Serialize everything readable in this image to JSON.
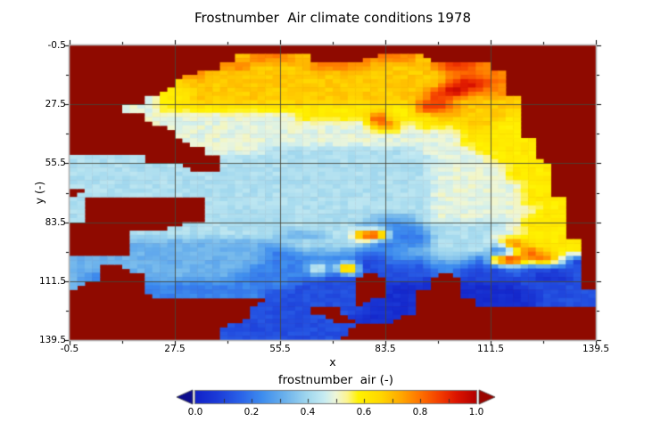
{
  "chart_data": {
    "type": "heatmap",
    "title": "Frostnumber  Air climate conditions 1978",
    "xlabel": "x",
    "ylabel": "y (-)",
    "x_range": [
      -0.5,
      139.5
    ],
    "y_range": [
      -0.5,
      139.5
    ],
    "y_axis_direction": "downward",
    "x_ticks": {
      "labels": [
        "-0.5",
        "27.5",
        "55.5",
        "83.5",
        "111.5",
        "139.5"
      ],
      "values": [
        -0.5,
        27.5,
        55.5,
        83.5,
        111.5,
        139.5
      ],
      "minor_values": [
        13.5,
        41.5,
        69.5,
        97.5,
        125.5
      ]
    },
    "y_ticks": {
      "labels": [
        "-0.5",
        "27.5",
        "55.5",
        "83.5",
        "111.5",
        "139.5"
      ],
      "values": [
        -0.5,
        27.5,
        55.5,
        83.5,
        111.5,
        139.5
      ],
      "minor_values": [
        13.5,
        41.5,
        69.5,
        97.5,
        125.5
      ]
    },
    "grid_on": true,
    "colorbar": {
      "title": "frostnumber  air (-)",
      "tick_labels": [
        "0.0",
        "0.2",
        "0.4",
        "0.6",
        "0.8",
        "1.0"
      ],
      "tick_values": [
        0,
        0.2,
        0.4,
        0.6,
        0.8,
        1.0
      ],
      "minor_interval": 0.1,
      "range": [
        0,
        1
      ],
      "under_arrow_color": "#0d0d8e",
      "over_arrow_color": "#9b0500"
    },
    "masked_color": "#8f0a00",
    "colormap_stops": [
      [
        0.0,
        "#1222c8"
      ],
      [
        0.08,
        "#1c3cd8"
      ],
      [
        0.16,
        "#2a62e8"
      ],
      [
        0.24,
        "#3f8eee"
      ],
      [
        0.32,
        "#6cb2ec"
      ],
      [
        0.4,
        "#a2d8ee"
      ],
      [
        0.46,
        "#c8ecf2"
      ],
      [
        0.5,
        "#eef6d8"
      ],
      [
        0.54,
        "#fcf490"
      ],
      [
        0.58,
        "#fff200"
      ],
      [
        0.66,
        "#ffd700"
      ],
      [
        0.73,
        "#ffaa00"
      ],
      [
        0.8,
        "#ff7200"
      ],
      [
        0.87,
        "#f33d00"
      ],
      [
        0.93,
        "#dc1400"
      ],
      [
        1.0,
        "#b40000"
      ]
    ],
    "grid": {
      "cols": 35,
      "rows": 35,
      "masked_char": ".",
      "value_map": {
        "0": 0.04,
        "1": 0.12,
        "2": 0.22,
        "3": 0.32,
        "4": 0.42,
        "5": 0.49,
        "6": 0.6,
        "7": 0.68,
        "8": 0.78,
        "9": 0.88,
        "R": 0.98
      },
      "rows_encoded": [
        "...................................",
        "...........78887....8887...........",
        "..........887777888877778998.......",
        "........877777777777777778888......",
        ".......7777777777777777779R98......",
        "......6677777777777777779R988......",
        ".....5667777777777777778987777.....",
        "...555666666666666666669987777.....",
        ".....5555555555666669666777776.....",
        "......555555555555558856667766.....",
        ".......55555555555555555556666.....",
        "........55555555555555555566666....",
        ".........5555444444444455556666....",
        "44444.....444444444444445555666....",
        "44444444..4444444444444455555666...",
        "44444444444444444444444455555666...",
        "44444444444444444444444455555566...",
        ".4444444444444444444444455555566...",
        "4........444444444444444555555666..",
        "4........444444444444444555555566..",
        "4........444444444443334555555666..",
        ".......44444444444433223444445666..",
        "....4444444444333449R222444455666..",
        "....333333333344444422224444596666.",
        "....333333333223333222334444149766.",
        "33333333333332222221122233319R7961.",
        "33..33333333222262R111112211121111.",
        "32...33333322222211..111..11111001.",
        "3....22222222221111..000..00001111.",
        ".....22222222111111..00...000001111",
        ".............111111.000....00001111",
        "............1111..11000............",
        "............11111..000.............",
        "..........111111111................",
        "..........11111111................."
      ]
    }
  },
  "style": {
    "background": "#ffffff",
    "frame_color": "#b3b3b3",
    "grid_color": "#46463a",
    "tick_color": "#000000",
    "text_color": "#000000"
  }
}
